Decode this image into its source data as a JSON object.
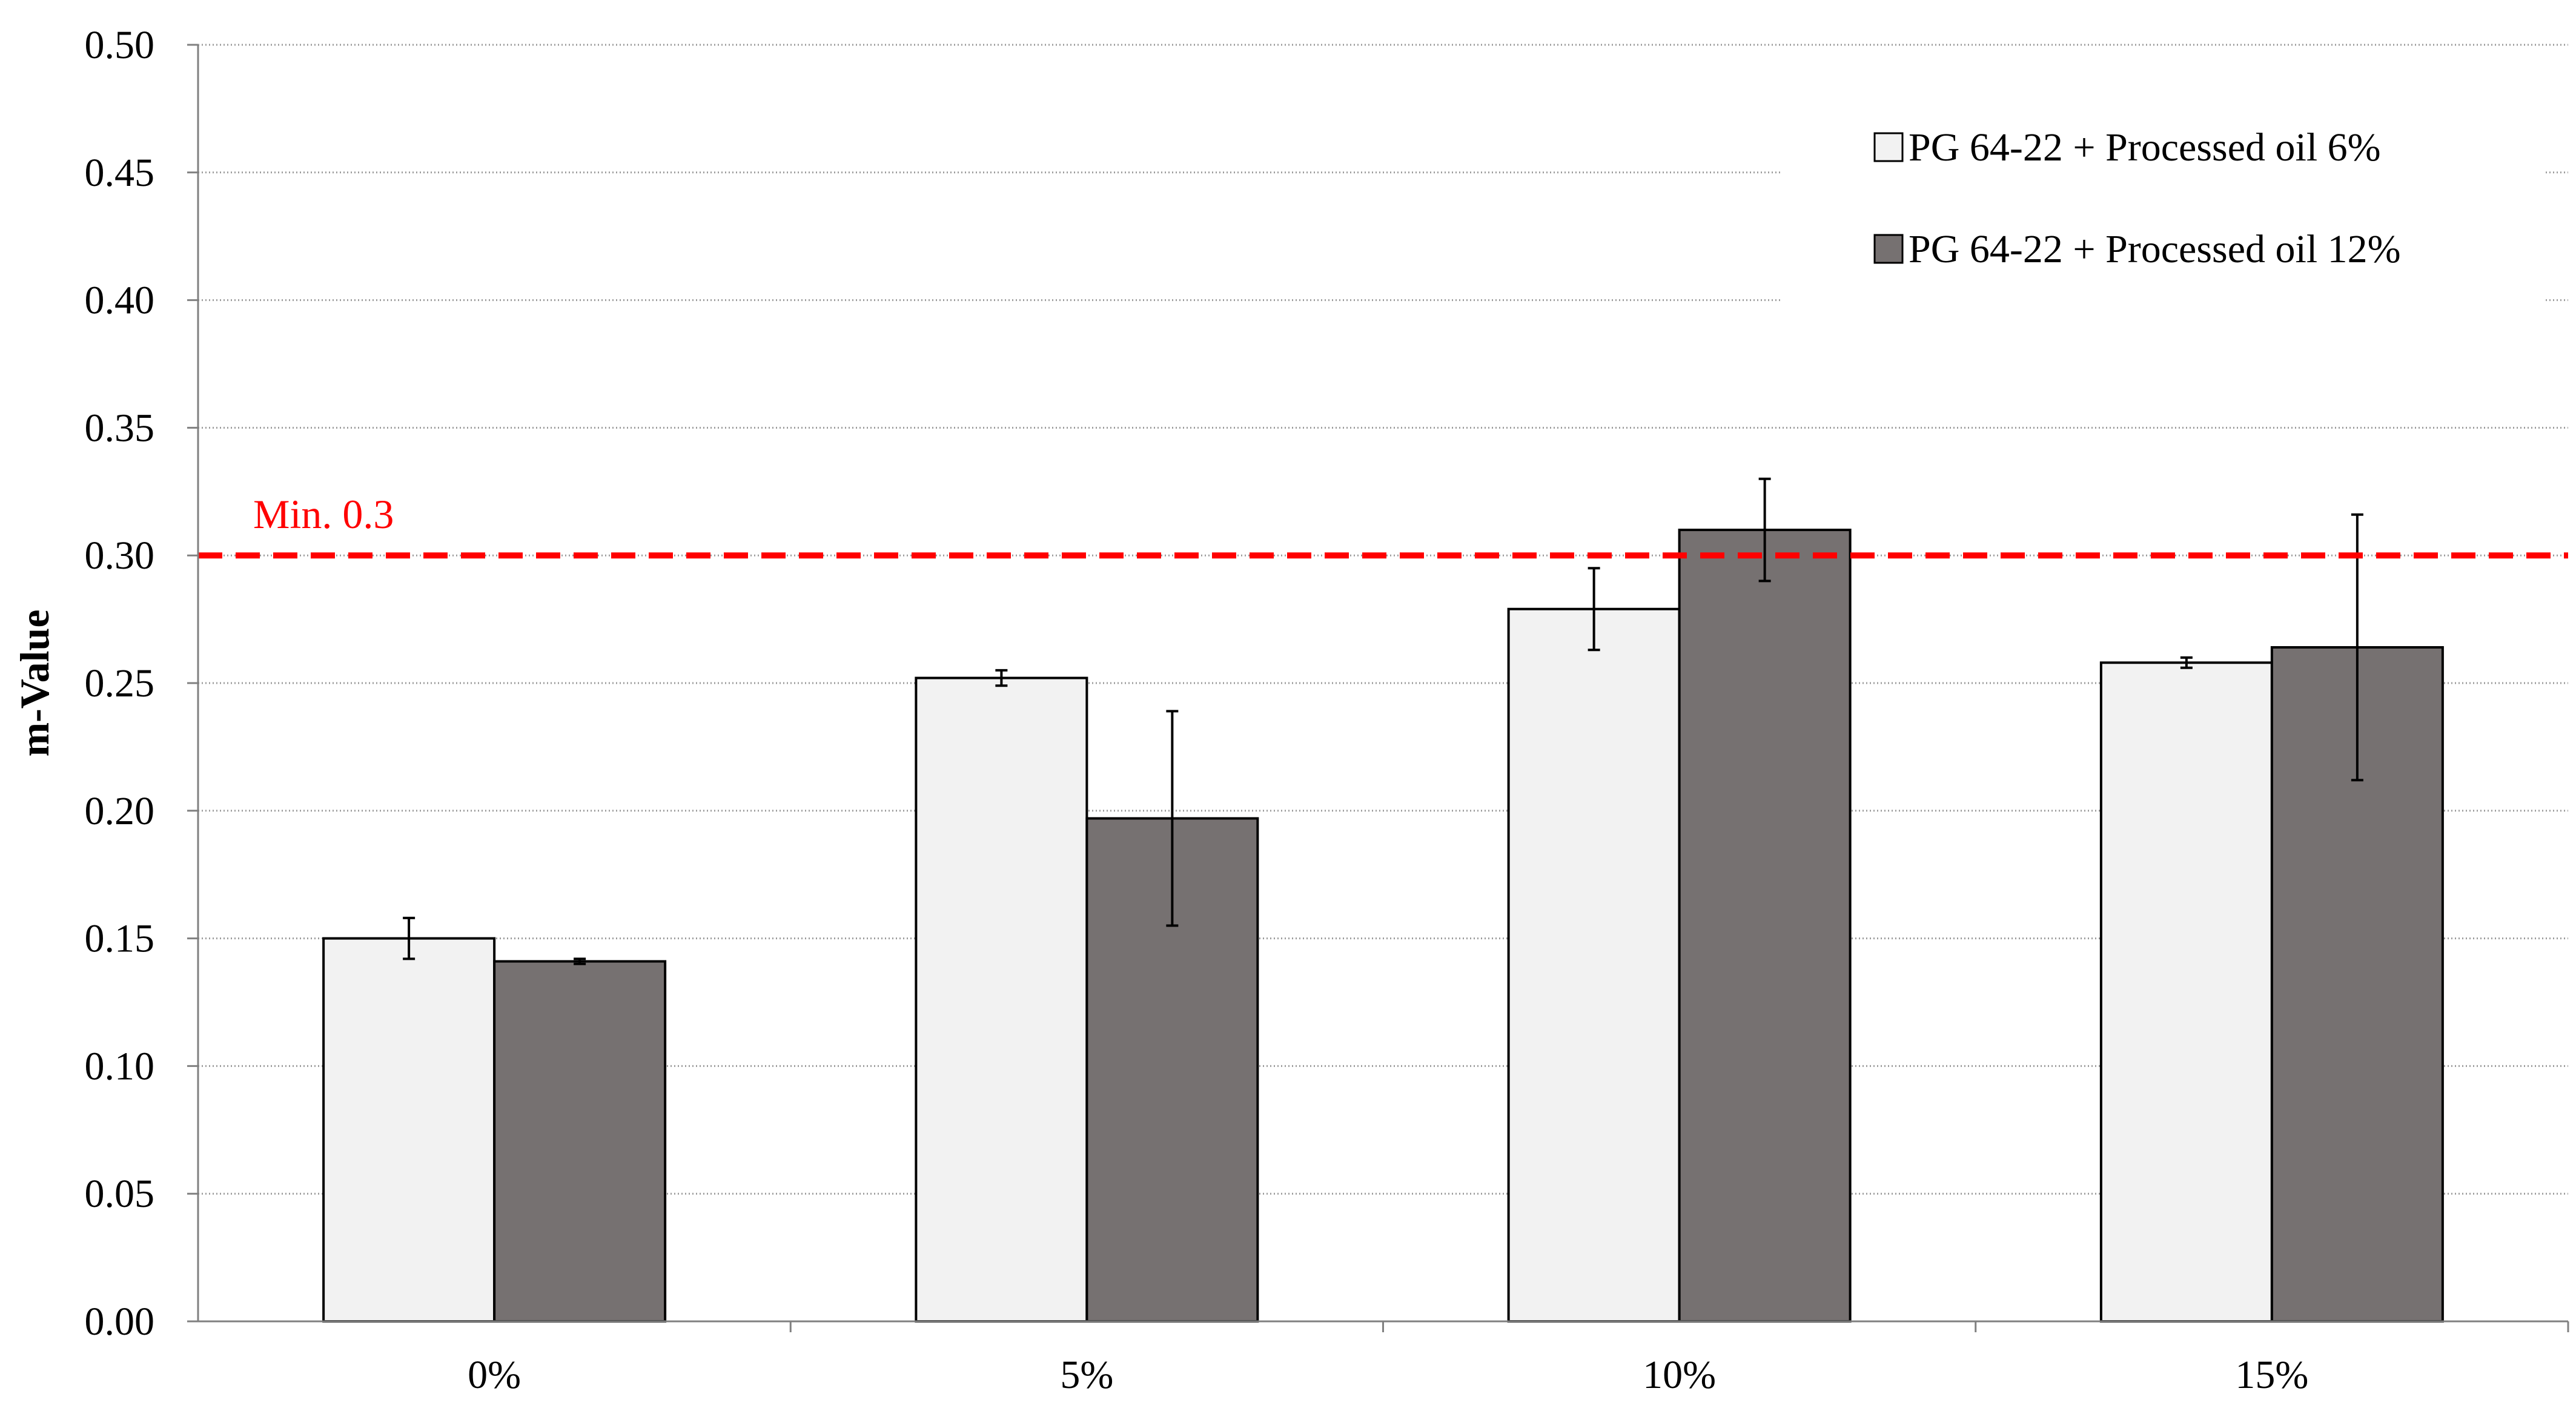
{
  "chart_data": {
    "type": "bar",
    "title": "",
    "xlabel": "",
    "ylabel": "m-Value",
    "ylim": [
      0,
      0.5
    ],
    "yticks": [
      "0.00",
      "0.05",
      "0.10",
      "0.15",
      "0.20",
      "0.25",
      "0.30",
      "0.35",
      "0.40",
      "0.45",
      "0.50"
    ],
    "categories": [
      "0%",
      "5%",
      "10%",
      "15%"
    ],
    "series": [
      {
        "name": "PG 64-22 + Processed oil 6%",
        "values": [
          0.15,
          0.252,
          0.279,
          0.258
        ],
        "errors": [
          0.008,
          0.003,
          0.016,
          0.002
        ],
        "color": "#f2f2f2"
      },
      {
        "name": "PG 64-22 + Processed oil 12%",
        "values": [
          0.141,
          0.197,
          0.31,
          0.264
        ],
        "errors": [
          0.001,
          0.042,
          0.02,
          0.052
        ],
        "color": "#767171"
      }
    ],
    "reference_line": {
      "value": 0.3,
      "label": "Min. 0.3",
      "color": "#ff0000",
      "style": "dashed"
    },
    "grid": true,
    "legend_position": "top-right"
  }
}
